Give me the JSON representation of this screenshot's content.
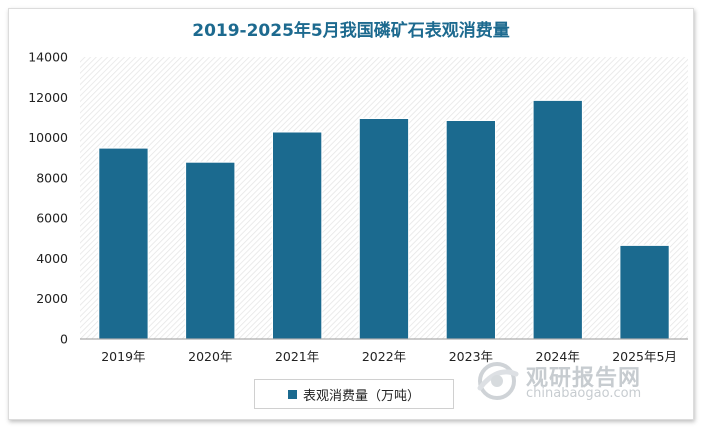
{
  "chart_data": {
    "type": "bar",
    "title": "2019-2025年5月我国磷矿石表观消费量",
    "categories": [
      "2019年",
      "2020年",
      "2021年",
      "2022年",
      "2023年",
      "2024年",
      "2025年5月"
    ],
    "series": [
      {
        "name": "表观消费量（万吨）",
        "values": [
          9480,
          8780,
          10280,
          10950,
          10850,
          11850,
          4650
        ],
        "color": "#1b6a8f"
      }
    ],
    "ylim": [
      0,
      14000
    ],
    "yticks": [
      0,
      2000,
      4000,
      6000,
      8000,
      10000,
      12000,
      14000
    ],
    "xlabel": "",
    "ylabel": "",
    "grid": false,
    "legend": "bottom"
  },
  "watermark": {
    "name_cn": "观研报告网",
    "domain": "chinabaogao.com",
    "icon": "globe-swoosh-logo"
  }
}
